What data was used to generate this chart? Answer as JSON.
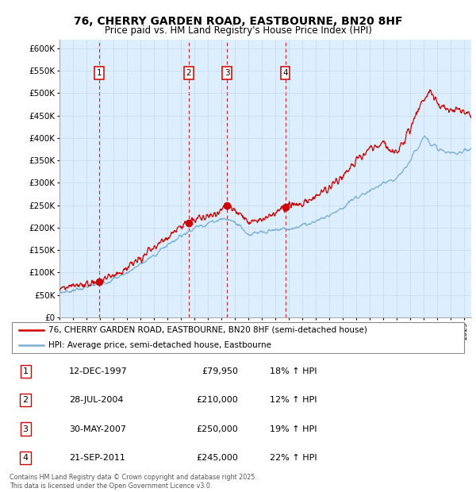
{
  "title": "76, CHERRY GARDEN ROAD, EASTBOURNE, BN20 8HF",
  "subtitle": "Price paid vs. HM Land Registry's House Price Index (HPI)",
  "yticks": [
    0,
    50000,
    100000,
    150000,
    200000,
    250000,
    300000,
    350000,
    400000,
    450000,
    500000,
    550000,
    600000
  ],
  "ytick_labels": [
    "£0",
    "£50K",
    "£100K",
    "£150K",
    "£200K",
    "£250K",
    "£300K",
    "£350K",
    "£400K",
    "£450K",
    "£500K",
    "£550K",
    "£600K"
  ],
  "ylim": [
    0,
    620000
  ],
  "sale_color": "#cc0000",
  "hpi_color": "#7ab0d4",
  "background_color": "#ddeeff",
  "plot_bg": "#ffffff",
  "sale_label": "76, CHERRY GARDEN ROAD, EASTBOURNE, BN20 8HF (semi-detached house)",
  "hpi_label": "HPI: Average price, semi-detached house, Eastbourne",
  "transactions": [
    {
      "num": 1,
      "date": "12-DEC-1997",
      "price": 79950,
      "pct": "18%",
      "year": 1997.95
    },
    {
      "num": 2,
      "date": "28-JUL-2004",
      "price": 210000,
      "pct": "12%",
      "year": 2004.57
    },
    {
      "num": 3,
      "date": "30-MAY-2007",
      "price": 250000,
      "pct": "19%",
      "year": 2007.41
    },
    {
      "num": 4,
      "date": "21-SEP-2011",
      "price": 245000,
      "pct": "22%",
      "year": 2011.72
    }
  ],
  "footer": "Contains HM Land Registry data © Crown copyright and database right 2025.\nThis data is licensed under the Open Government Licence v3.0.",
  "xmin": 1995.0,
  "xmax": 2025.5,
  "hpi_anchors_x": [
    1995,
    1996,
    1997,
    1998,
    1999,
    2000,
    2001,
    2002,
    2003,
    2004,
    2005,
    2006,
    2007,
    2008,
    2009,
    2010,
    2011,
    2012,
    2013,
    2014,
    2015,
    2016,
    2017,
    2018,
    2019,
    2020,
    2021,
    2022,
    2023,
    2024,
    2025.5
  ],
  "hpi_anchors_y": [
    55000,
    60000,
    67000,
    75000,
    85000,
    100000,
    118000,
    138000,
    162000,
    182000,
    200000,
    210000,
    220000,
    215000,
    185000,
    188000,
    195000,
    198000,
    205000,
    215000,
    228000,
    245000,
    268000,
    282000,
    298000,
    308000,
    350000,
    405000,
    375000,
    365000,
    375000
  ],
  "sale_anchors_x": [
    1995,
    1996,
    1997,
    1997.95,
    1998.5,
    1999,
    2000,
    2001,
    2002,
    2003,
    2004,
    2004.57,
    2005,
    2006,
    2007,
    2007.41,
    2008,
    2009,
    2010,
    2011,
    2011.72,
    2012,
    2013,
    2014,
    2015,
    2016,
    2017,
    2018,
    2018.5,
    2019,
    2019.5,
    2020,
    2021,
    2022,
    2022.5,
    2023,
    2024,
    2024.5,
    2025,
    2025.5
  ],
  "sale_anchors_y": [
    65000,
    68000,
    75000,
    79950,
    88000,
    95000,
    110000,
    130000,
    155000,
    180000,
    205000,
    210000,
    218000,
    225000,
    240000,
    250000,
    242000,
    215000,
    218000,
    235000,
    245000,
    250000,
    255000,
    270000,
    290000,
    318000,
    350000,
    375000,
    380000,
    390000,
    370000,
    370000,
    420000,
    490000,
    505000,
    475000,
    460000,
    465000,
    455000,
    450000
  ]
}
